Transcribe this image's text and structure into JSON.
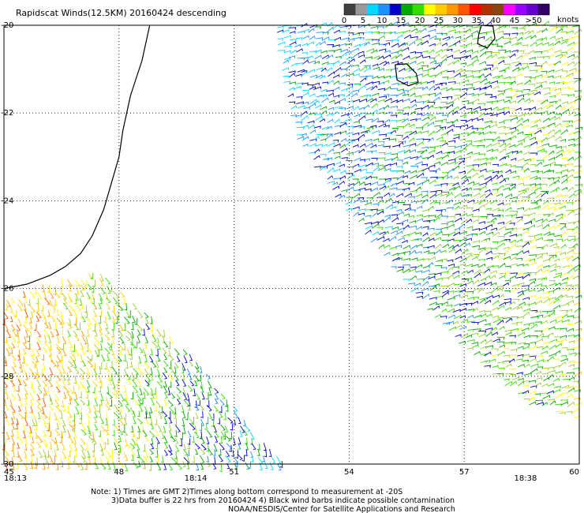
{
  "chart_data": {
    "type": "scatter",
    "title": "Rapidscat Winds(12.5KM) 20160424 descending",
    "colorbar": {
      "labels": [
        "0",
        "5",
        "10",
        "15",
        "20",
        "25",
        "30",
        "35",
        "40",
        "45",
        ">50"
      ],
      "unit": "knots",
      "colors": [
        "#404040",
        "#9a9a9a",
        "#00d8ff",
        "#1e90ff",
        "#0000cc",
        "#00aa00",
        "#33dd00",
        "#ffff00",
        "#ffcc00",
        "#ff9900",
        "#ff5500",
        "#ff0000",
        "#b03000",
        "#8b4513",
        "#ff00ff",
        "#9900ff",
        "#6600cc",
        "#330066"
      ]
    },
    "xlim": [
      45,
      60
    ],
    "ylim": [
      -30,
      -20
    ],
    "xticks": [
      "45",
      "48",
      "51",
      "54",
      "57",
      "60"
    ],
    "yticks": [
      "-20",
      "-22",
      "-24",
      "-26",
      "-28",
      "-30"
    ],
    "grid": true,
    "time_labels": [
      {
        "lon": 45,
        "text": "18:13"
      },
      {
        "lon": 50,
        "text": "18:14"
      },
      {
        "lon": 58.6,
        "text": "18:38"
      }
    ],
    "swaths": [
      {
        "name": "west swath",
        "outline": [
          [
            45,
            -26.2
          ],
          [
            46.2,
            -25.8
          ],
          [
            47.5,
            -25.6
          ],
          [
            48.8,
            -26.6
          ],
          [
            50.2,
            -27.8
          ],
          [
            51.0,
            -28.6
          ],
          [
            51.5,
            -29.3
          ],
          [
            52.4,
            -30
          ],
          [
            45,
            -30
          ]
        ]
      },
      {
        "name": "east swath",
        "outline": [
          [
            52.0,
            -20
          ],
          [
            60,
            -20
          ],
          [
            60,
            -29.0
          ],
          [
            58.5,
            -28.6
          ],
          [
            57.0,
            -27.4
          ],
          [
            55.5,
            -26.0
          ],
          [
            54.6,
            -25.0
          ],
          [
            53.5,
            -23.8
          ],
          [
            52.6,
            -22.6
          ],
          [
            52.2,
            -21.2
          ]
        ]
      }
    ],
    "coastlines": [
      {
        "name": "Madagascar east coast",
        "points": [
          [
            48.8,
            -20
          ],
          [
            48.6,
            -20.8
          ],
          [
            48.3,
            -21.6
          ],
          [
            48.1,
            -22.4
          ],
          [
            48.0,
            -23.0
          ],
          [
            47.8,
            -23.6
          ],
          [
            47.6,
            -24.2
          ],
          [
            47.3,
            -24.8
          ],
          [
            47.0,
            -25.2
          ],
          [
            46.6,
            -25.5
          ],
          [
            46.2,
            -25.7
          ],
          [
            45.6,
            -25.9
          ],
          [
            45.0,
            -26.0
          ]
        ]
      },
      {
        "name": "La Reunion",
        "points": [
          [
            55.2,
            -20.9
          ],
          [
            55.5,
            -20.88
          ],
          [
            55.75,
            -21.1
          ],
          [
            55.8,
            -21.3
          ],
          [
            55.55,
            -21.38
          ],
          [
            55.25,
            -21.25
          ],
          [
            55.2,
            -20.9
          ]
        ]
      },
      {
        "name": "Mauritius",
        "points": [
          [
            57.45,
            -20.0
          ],
          [
            57.75,
            -20.02
          ],
          [
            57.8,
            -20.3
          ],
          [
            57.6,
            -20.52
          ],
          [
            57.35,
            -20.42
          ],
          [
            57.38,
            -20.2
          ],
          [
            57.45,
            -20.0
          ]
        ]
      }
    ]
  },
  "notes": {
    "line1": "Note: 1) Times are GMT 2)Times along bottom correspond to measurement at -20S",
    "line2": "3)Data buffer is 22 hrs from 20160424 4) Black wind barbs indicate possible contamination",
    "line3": "NOAA/NESDIS/Center for Satellite Applications and Research"
  }
}
